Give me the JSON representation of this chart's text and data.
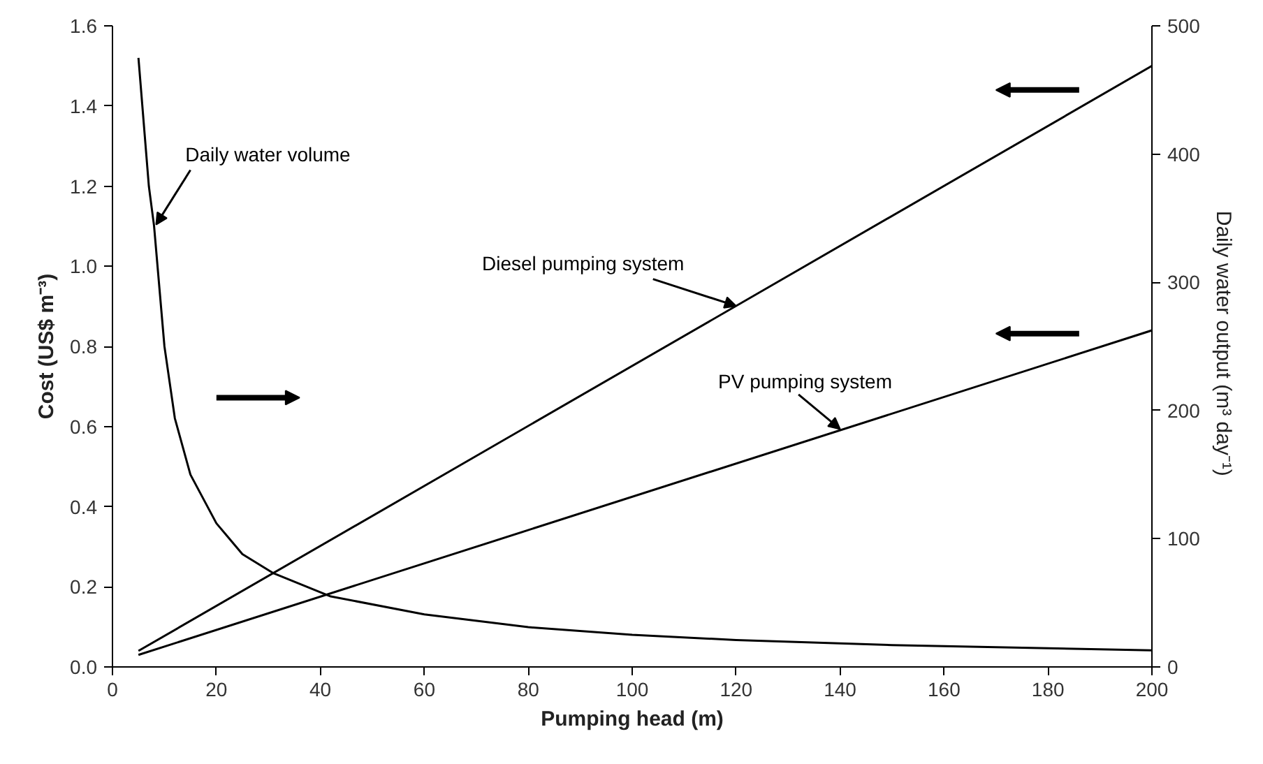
{
  "chart_data": {
    "type": "line",
    "xlabel": "Pumping head (m)",
    "ylabel": "Cost (US$ m⁻³)",
    "y2label": "Daily water output  (m³ day⁻¹)",
    "xlim": [
      0,
      200
    ],
    "xticks": [
      0,
      20,
      40,
      60,
      80,
      100,
      120,
      140,
      160,
      180,
      200
    ],
    "ylim": [
      0,
      1.6
    ],
    "yticks": [
      {
        "value": 0,
        "label": "0.0"
      },
      0.2,
      0.4,
      0.6,
      0.8,
      {
        "value": 1,
        "label": "1.0"
      },
      1.2,
      1.4,
      1.6
    ],
    "y2lim": [
      0,
      500
    ],
    "y2ticks": [
      0,
      100,
      200,
      300,
      400,
      500
    ],
    "grid": false,
    "marker": "none",
    "line_style": "solid",
    "series": [
      {
        "name": "Daily water volume",
        "color": "#000000",
        "axis": "y2",
        "x": [
          5,
          7,
          8,
          10,
          12,
          15,
          20,
          25,
          31,
          42,
          60,
          80,
          100,
          120,
          150,
          200
        ],
        "values": [
          475,
          375,
          344,
          250,
          194,
          150,
          112,
          88,
          73,
          55,
          41,
          31,
          25,
          21,
          17,
          13
        ]
      },
      {
        "name": "Diesel pumping system",
        "color": "#000000",
        "x": [
          5,
          200
        ],
        "values": [
          0.04,
          1.5
        ]
      },
      {
        "name": "PV pumping system",
        "color": "#000000",
        "x": [
          5,
          200
        ],
        "values": [
          0.03,
          0.84
        ]
      }
    ]
  }
}
